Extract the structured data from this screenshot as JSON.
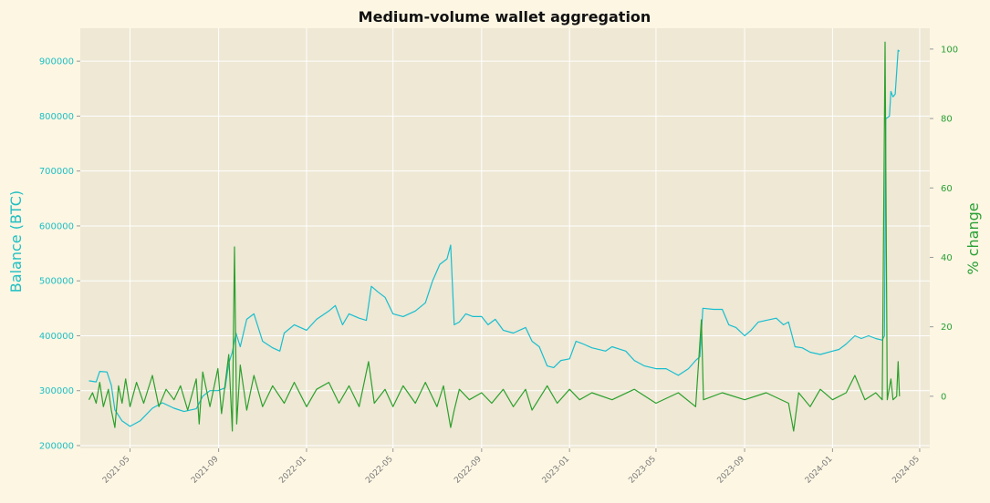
{
  "chart_data": {
    "type": "line",
    "title": "Medium-volume wallet aggregation",
    "ylabel_left": "Balance (BTC)",
    "ylabel_right": "% change",
    "grid": true,
    "colors": {
      "balance": "#17becf",
      "pct": "#2ca02c",
      "plot_bg": "#eee8d5",
      "page_bg": "#fdf6e3",
      "grid": "#ffffff"
    },
    "xlim": [
      "2021-02-21",
      "2024-05-15"
    ],
    "ylim_left": [
      195000,
      960000
    ],
    "ylim_right": [
      -15,
      106
    ],
    "x_ticks": [
      {
        "date": "2021-05-01",
        "label": "2021-05"
      },
      {
        "date": "2021-09-01",
        "label": "2021-09"
      },
      {
        "date": "2022-01-01",
        "label": "2022-01"
      },
      {
        "date": "2022-05-01",
        "label": "2022-05"
      },
      {
        "date": "2022-09-01",
        "label": "2022-09"
      },
      {
        "date": "2023-01-01",
        "label": "2023-01"
      },
      {
        "date": "2023-05-01",
        "label": "2023-05"
      },
      {
        "date": "2023-09-01",
        "label": "2023-09"
      },
      {
        "date": "2024-01-01",
        "label": "2024-01"
      },
      {
        "date": "2024-05-01",
        "label": "2024-05"
      }
    ],
    "y_ticks_left": [
      {
        "value": 200000,
        "label": "200000"
      },
      {
        "value": 300000,
        "label": "300000"
      },
      {
        "value": 400000,
        "label": "400000"
      },
      {
        "value": 500000,
        "label": "500000"
      },
      {
        "value": 600000,
        "label": "600000"
      },
      {
        "value": 700000,
        "label": "700000"
      },
      {
        "value": 800000,
        "label": "800000"
      },
      {
        "value": 900000,
        "label": "900000"
      }
    ],
    "y_ticks_right": [
      {
        "value": 0,
        "label": "0"
      },
      {
        "value": 20,
        "label": "20"
      },
      {
        "value": 40,
        "label": "40"
      },
      {
        "value": 60,
        "label": "60"
      },
      {
        "value": 80,
        "label": "80"
      },
      {
        "value": 100,
        "label": "100"
      }
    ],
    "series": [
      {
        "axis": "left",
        "points": [
          [
            "2021-03-05",
            318000
          ],
          [
            "2021-03-15",
            316000
          ],
          [
            "2021-03-20",
            335000
          ],
          [
            "2021-03-30",
            334000
          ],
          [
            "2021-04-05",
            310000
          ],
          [
            "2021-04-10",
            265000
          ],
          [
            "2021-04-20",
            245000
          ],
          [
            "2021-05-01",
            235000
          ],
          [
            "2021-05-15",
            245000
          ],
          [
            "2021-06-01",
            268000
          ],
          [
            "2021-06-15",
            278000
          ],
          [
            "2021-07-01",
            268000
          ],
          [
            "2021-07-15",
            262000
          ],
          [
            "2021-08-01",
            267000
          ],
          [
            "2021-08-10",
            290000
          ],
          [
            "2021-08-20",
            300000
          ],
          [
            "2021-08-31",
            300000
          ],
          [
            "2021-09-10",
            305000
          ],
          [
            "2021-09-15",
            350000
          ],
          [
            "2021-09-20",
            370000
          ],
          [
            "2021-09-25",
            405000
          ],
          [
            "2021-10-01",
            380000
          ],
          [
            "2021-10-10",
            430000
          ],
          [
            "2021-10-20",
            440000
          ],
          [
            "2021-11-01",
            390000
          ],
          [
            "2021-11-15",
            378000
          ],
          [
            "2021-11-25",
            372000
          ],
          [
            "2021-12-01",
            405000
          ],
          [
            "2021-12-15",
            420000
          ],
          [
            "2022-01-01",
            410000
          ],
          [
            "2022-01-15",
            430000
          ],
          [
            "2022-02-01",
            445000
          ],
          [
            "2022-02-10",
            455000
          ],
          [
            "2022-02-20",
            420000
          ],
          [
            "2022-03-01",
            440000
          ],
          [
            "2022-03-15",
            432000
          ],
          [
            "2022-03-25",
            428000
          ],
          [
            "2022-04-01",
            490000
          ],
          [
            "2022-04-10",
            480000
          ],
          [
            "2022-04-20",
            470000
          ],
          [
            "2022-05-01",
            440000
          ],
          [
            "2022-05-15",
            435000
          ],
          [
            "2022-06-01",
            445000
          ],
          [
            "2022-06-15",
            460000
          ],
          [
            "2022-06-25",
            500000
          ],
          [
            "2022-07-05",
            530000
          ],
          [
            "2022-07-15",
            540000
          ],
          [
            "2022-07-20",
            565000
          ],
          [
            "2022-07-25",
            420000
          ],
          [
            "2022-08-01",
            425000
          ],
          [
            "2022-08-10",
            440000
          ],
          [
            "2022-08-20",
            435000
          ],
          [
            "2022-09-01",
            435000
          ],
          [
            "2022-09-10",
            420000
          ],
          [
            "2022-09-20",
            430000
          ],
          [
            "2022-10-01",
            410000
          ],
          [
            "2022-10-15",
            405000
          ],
          [
            "2022-11-01",
            415000
          ],
          [
            "2022-11-10",
            390000
          ],
          [
            "2022-11-20",
            380000
          ],
          [
            "2022-12-01",
            345000
          ],
          [
            "2022-12-10",
            342000
          ],
          [
            "2022-12-20",
            355000
          ],
          [
            "2023-01-01",
            358000
          ],
          [
            "2023-01-10",
            390000
          ],
          [
            "2023-01-20",
            385000
          ],
          [
            "2023-02-01",
            378000
          ],
          [
            "2023-02-20",
            372000
          ],
          [
            "2023-03-01",
            380000
          ],
          [
            "2023-03-20",
            372000
          ],
          [
            "2023-04-01",
            355000
          ],
          [
            "2023-04-15",
            345000
          ],
          [
            "2023-05-01",
            340000
          ],
          [
            "2023-05-15",
            340000
          ],
          [
            "2023-06-01",
            328000
          ],
          [
            "2023-06-15",
            340000
          ],
          [
            "2023-06-25",
            355000
          ],
          [
            "2023-07-01",
            362000
          ],
          [
            "2023-07-05",
            450000
          ],
          [
            "2023-07-20",
            448000
          ],
          [
            "2023-08-01",
            448000
          ],
          [
            "2023-08-10",
            420000
          ],
          [
            "2023-08-20",
            415000
          ],
          [
            "2023-09-01",
            400000
          ],
          [
            "2023-09-10",
            410000
          ],
          [
            "2023-09-20",
            425000
          ],
          [
            "2023-10-01",
            428000
          ],
          [
            "2023-10-15",
            432000
          ],
          [
            "2023-10-25",
            420000
          ],
          [
            "2023-11-01",
            425000
          ],
          [
            "2023-11-10",
            380000
          ],
          [
            "2023-11-20",
            378000
          ],
          [
            "2023-12-01",
            370000
          ],
          [
            "2023-12-15",
            366000
          ],
          [
            "2024-01-01",
            372000
          ],
          [
            "2024-01-10",
            375000
          ],
          [
            "2024-01-20",
            385000
          ],
          [
            "2024-02-01",
            400000
          ],
          [
            "2024-02-10",
            395000
          ],
          [
            "2024-02-20",
            400000
          ],
          [
            "2024-03-01",
            395000
          ],
          [
            "2024-03-10",
            392000
          ],
          [
            "2024-03-13",
            400000
          ],
          [
            "2024-03-15",
            795000
          ],
          [
            "2024-03-20",
            800000
          ],
          [
            "2024-03-22",
            845000
          ],
          [
            "2024-03-25",
            835000
          ],
          [
            "2024-03-28",
            840000
          ],
          [
            "2024-04-01",
            920000
          ],
          [
            "2024-04-03",
            918000
          ]
        ]
      },
      {
        "axis": "right",
        "points": [
          [
            "2021-03-05",
            -1
          ],
          [
            "2021-03-10",
            1
          ],
          [
            "2021-03-15",
            -2
          ],
          [
            "2021-03-20",
            4
          ],
          [
            "2021-03-25",
            -3
          ],
          [
            "2021-04-01",
            2
          ],
          [
            "2021-04-05",
            -4
          ],
          [
            "2021-04-10",
            -9
          ],
          [
            "2021-04-15",
            3
          ],
          [
            "2021-04-20",
            -2
          ],
          [
            "2021-04-25",
            5
          ],
          [
            "2021-05-01",
            -3
          ],
          [
            "2021-05-10",
            4
          ],
          [
            "2021-05-20",
            -2
          ],
          [
            "2021-06-01",
            6
          ],
          [
            "2021-06-10",
            -3
          ],
          [
            "2021-06-20",
            2
          ],
          [
            "2021-07-01",
            -1
          ],
          [
            "2021-07-10",
            3
          ],
          [
            "2021-07-20",
            -4
          ],
          [
            "2021-08-01",
            5
          ],
          [
            "2021-08-05",
            -8
          ],
          [
            "2021-08-10",
            7
          ],
          [
            "2021-08-20",
            -3
          ],
          [
            "2021-08-31",
            8
          ],
          [
            "2021-09-05",
            -5
          ],
          [
            "2021-09-15",
            12
          ],
          [
            "2021-09-20",
            -10
          ],
          [
            "2021-09-23",
            43
          ],
          [
            "2021-09-26",
            -8
          ],
          [
            "2021-10-01",
            9
          ],
          [
            "2021-10-10",
            -4
          ],
          [
            "2021-10-20",
            6
          ],
          [
            "2021-11-01",
            -3
          ],
          [
            "2021-11-15",
            3
          ],
          [
            "2021-12-01",
            -2
          ],
          [
            "2021-12-15",
            4
          ],
          [
            "2022-01-01",
            -3
          ],
          [
            "2022-01-15",
            2
          ],
          [
            "2022-02-01",
            4
          ],
          [
            "2022-02-15",
            -2
          ],
          [
            "2022-03-01",
            3
          ],
          [
            "2022-03-15",
            -3
          ],
          [
            "2022-03-28",
            10
          ],
          [
            "2022-04-05",
            -2
          ],
          [
            "2022-04-20",
            2
          ],
          [
            "2022-05-01",
            -3
          ],
          [
            "2022-05-15",
            3
          ],
          [
            "2022-06-01",
            -2
          ],
          [
            "2022-06-15",
            4
          ],
          [
            "2022-07-01",
            -3
          ],
          [
            "2022-07-10",
            3
          ],
          [
            "2022-07-20",
            -9
          ],
          [
            "2022-07-25",
            -4
          ],
          [
            "2022-08-01",
            2
          ],
          [
            "2022-08-15",
            -1
          ],
          [
            "2022-09-01",
            1
          ],
          [
            "2022-09-15",
            -2
          ],
          [
            "2022-10-01",
            2
          ],
          [
            "2022-10-15",
            -3
          ],
          [
            "2022-11-01",
            2
          ],
          [
            "2022-11-10",
            -4
          ],
          [
            "2022-12-01",
            3
          ],
          [
            "2022-12-15",
            -2
          ],
          [
            "2023-01-01",
            2
          ],
          [
            "2023-01-15",
            -1
          ],
          [
            "2023-02-01",
            1
          ],
          [
            "2023-03-01",
            -1
          ],
          [
            "2023-04-01",
            2
          ],
          [
            "2023-05-01",
            -2
          ],
          [
            "2023-06-01",
            1
          ],
          [
            "2023-06-25",
            -3
          ],
          [
            "2023-07-03",
            22
          ],
          [
            "2023-07-06",
            -1
          ],
          [
            "2023-08-01",
            1
          ],
          [
            "2023-09-01",
            -1
          ],
          [
            "2023-10-01",
            1
          ],
          [
            "2023-11-01",
            -2
          ],
          [
            "2023-11-08",
            -10
          ],
          [
            "2023-11-15",
            1
          ],
          [
            "2023-12-01",
            -3
          ],
          [
            "2023-12-15",
            2
          ],
          [
            "2024-01-01",
            -1
          ],
          [
            "2024-01-20",
            1
          ],
          [
            "2024-02-01",
            6
          ],
          [
            "2024-02-15",
            -1
          ],
          [
            "2024-03-01",
            1
          ],
          [
            "2024-03-10",
            -1
          ],
          [
            "2024-03-14",
            102
          ],
          [
            "2024-03-17",
            -1
          ],
          [
            "2024-03-22",
            5
          ],
          [
            "2024-03-25",
            -1
          ],
          [
            "2024-03-30",
            0
          ],
          [
            "2024-04-01",
            10
          ],
          [
            "2024-04-03",
            0
          ]
        ]
      }
    ]
  }
}
